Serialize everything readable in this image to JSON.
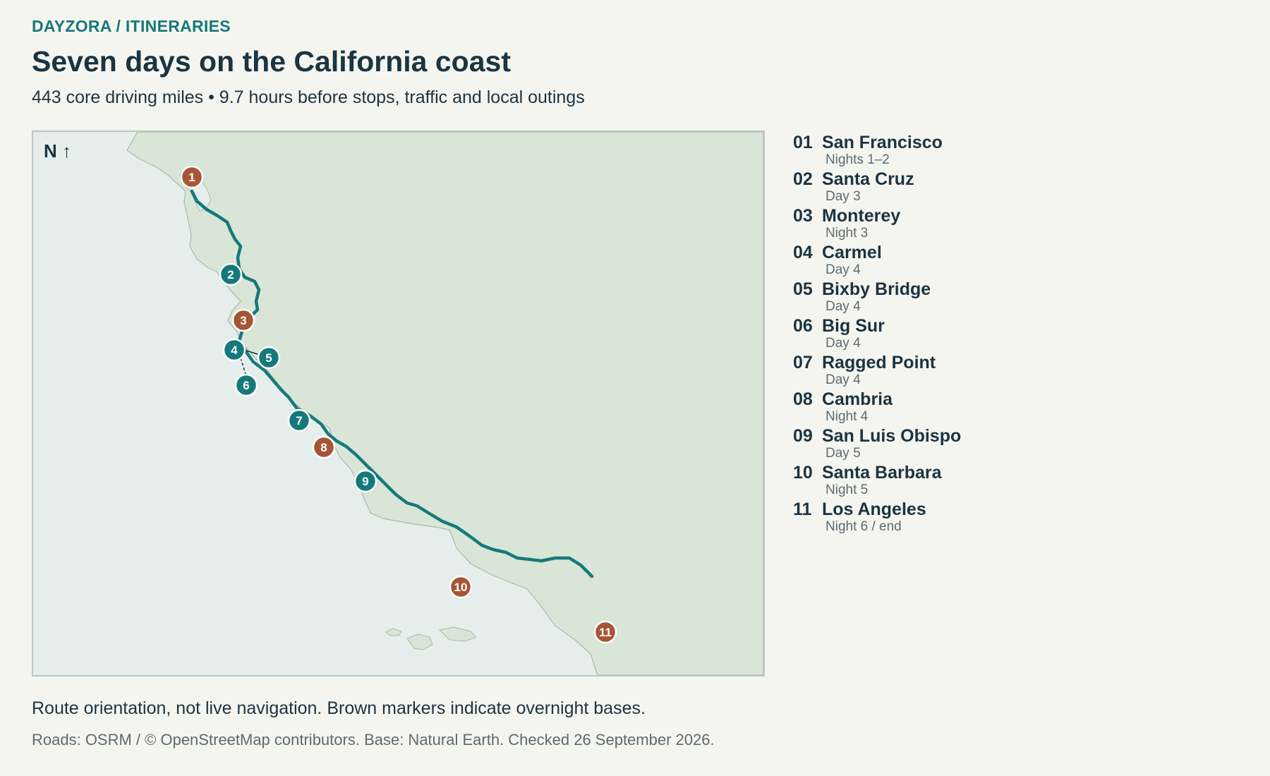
{
  "header": {
    "breadcrumb": "DAYZORA / ITINERARIES",
    "title": "Seven days on the California coast",
    "subtitle": "443 core driving miles • 9.7 hours before stops, traffic and local outings"
  },
  "map": {
    "north_label": "N ↑",
    "colors": {
      "ocean": "#e6eeec",
      "land": "#d9e5d7",
      "coast_stroke": "#a9b9ad",
      "route": "#15797b",
      "day_marker": "#15797b",
      "overnight_marker": "#a55634",
      "marker_outline": "#ffffff"
    },
    "markers": [
      {
        "label": "1",
        "kind": "overnight"
      },
      {
        "label": "2",
        "kind": "day"
      },
      {
        "label": "3",
        "kind": "overnight"
      },
      {
        "label": "4",
        "kind": "day"
      },
      {
        "label": "5",
        "kind": "day"
      },
      {
        "label": "6",
        "kind": "day"
      },
      {
        "label": "7",
        "kind": "day"
      },
      {
        "label": "8",
        "kind": "overnight"
      },
      {
        "label": "9",
        "kind": "day"
      },
      {
        "label": "10",
        "kind": "overnight"
      },
      {
        "label": "11",
        "kind": "overnight"
      }
    ]
  },
  "stops": [
    {
      "num": "01",
      "name": "San Francisco",
      "when": "Nights 1–2"
    },
    {
      "num": "02",
      "name": "Santa Cruz",
      "when": "Day 3"
    },
    {
      "num": "03",
      "name": "Monterey",
      "when": "Night 3"
    },
    {
      "num": "04",
      "name": "Carmel",
      "when": "Day 4"
    },
    {
      "num": "05",
      "name": "Bixby Bridge",
      "when": "Day 4"
    },
    {
      "num": "06",
      "name": "Big Sur",
      "when": "Day 4"
    },
    {
      "num": "07",
      "name": "Ragged Point",
      "when": "Day 4"
    },
    {
      "num": "08",
      "name": "Cambria",
      "when": "Night 4"
    },
    {
      "num": "09",
      "name": "San Luis Obispo",
      "when": "Day 5"
    },
    {
      "num": "10",
      "name": "Santa Barbara",
      "when": "Night 5"
    },
    {
      "num": "11",
      "name": "Los Angeles",
      "when": "Night 6 / end"
    }
  ],
  "footer": {
    "note": "Route orientation, not live navigation. Brown markers indicate overnight bases.",
    "credits": "Roads: OSRM / © OpenStreetMap contributors. Base: Natural Earth. Checked 26 September 2026."
  }
}
